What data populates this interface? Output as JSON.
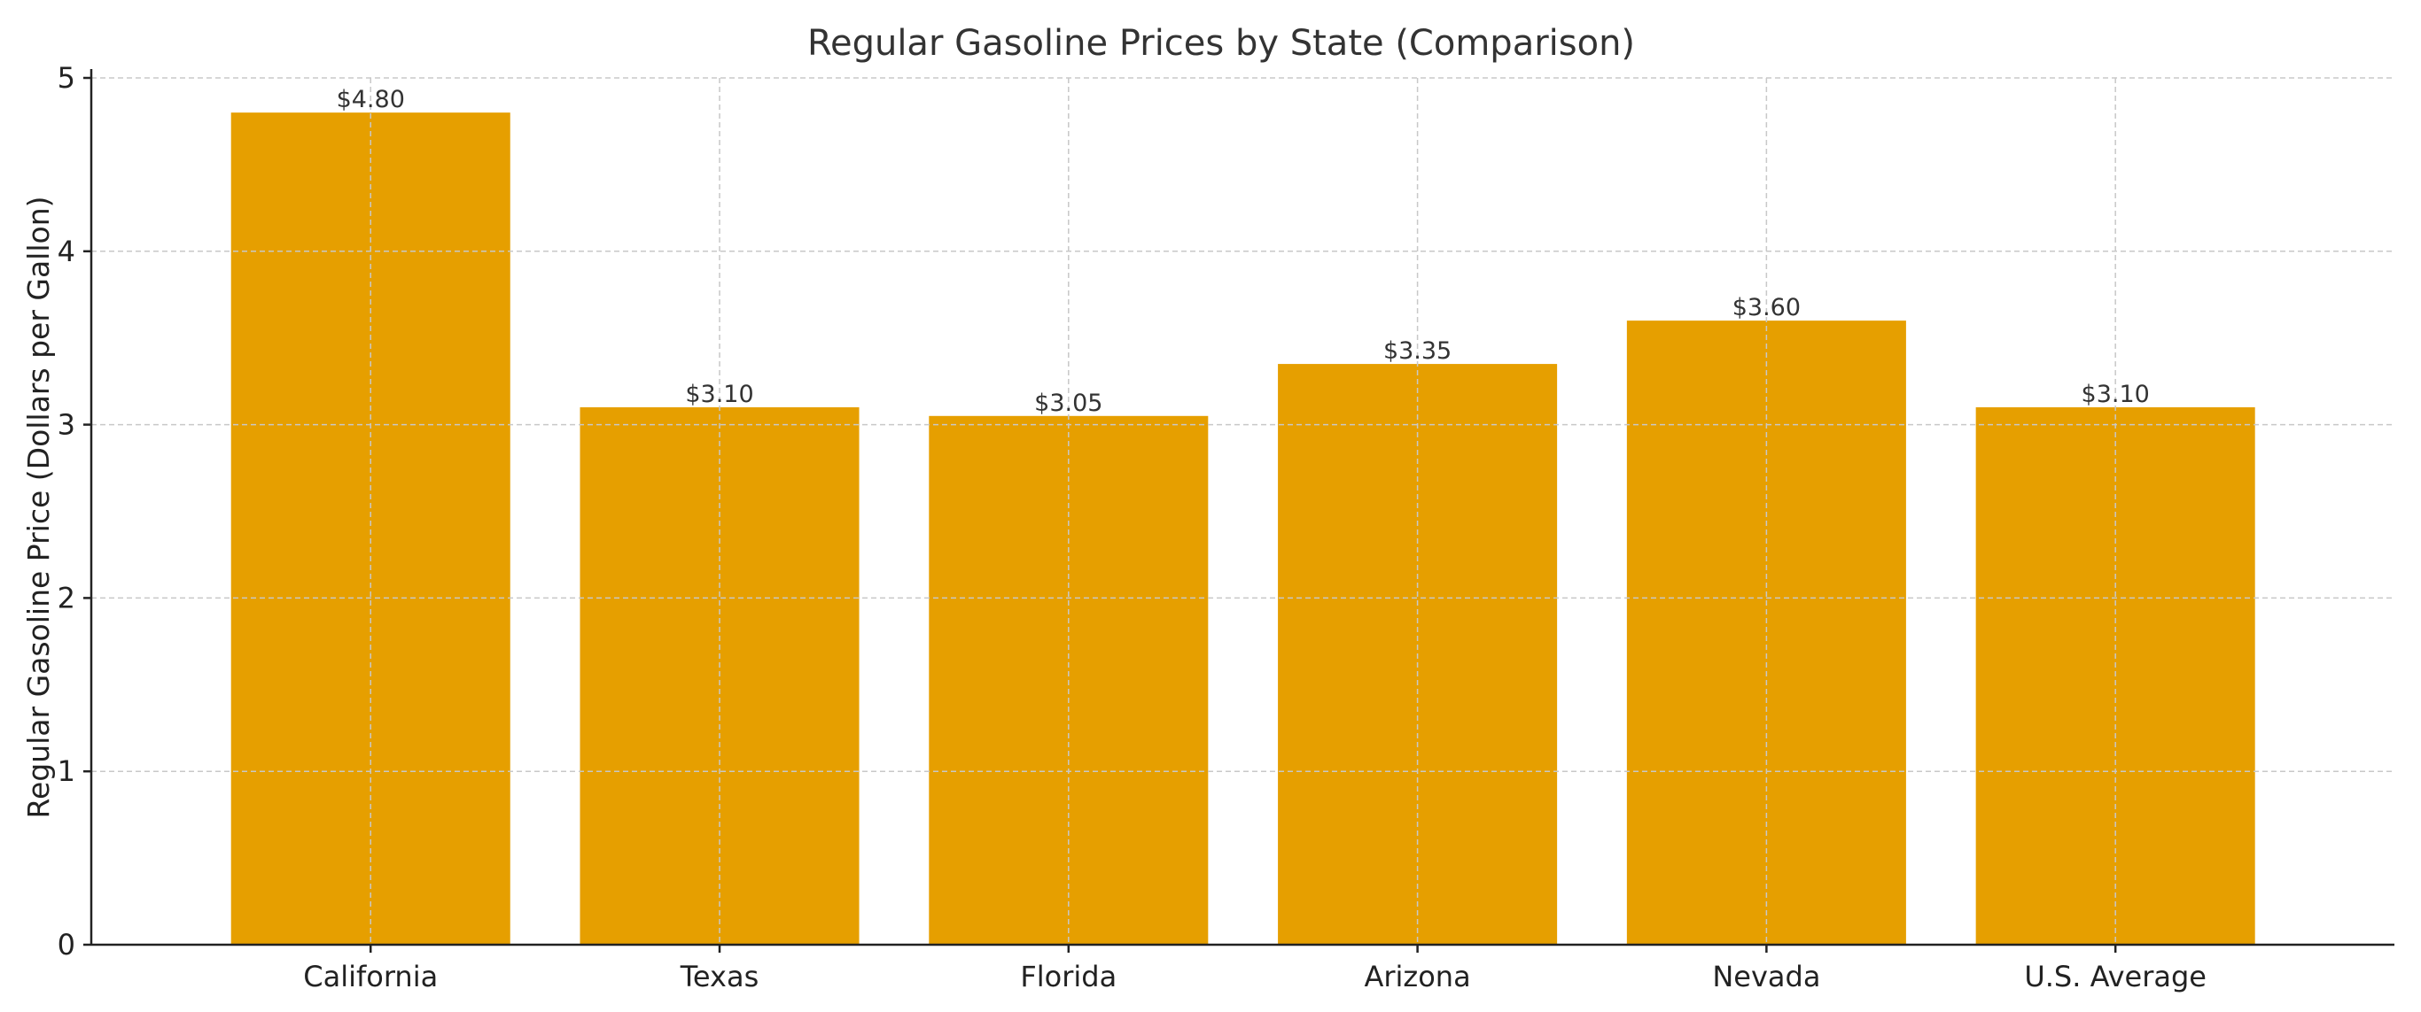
{
  "chart_data": {
    "type": "bar",
    "title": "Regular Gasoline Prices by State (Comparison)",
    "xlabel": "",
    "ylabel": "Regular Gasoline Price (Dollars per Gallon)",
    "categories": [
      "California",
      "Texas",
      "Florida",
      "Arizona",
      "Nevada",
      "U.S. Average"
    ],
    "values": [
      4.8,
      3.1,
      3.05,
      3.35,
      3.6,
      3.1
    ],
    "data_labels": [
      "$4.80",
      "$3.10",
      "$3.05",
      "$3.35",
      "$3.60",
      "$3.10"
    ],
    "yticks": [
      0,
      1,
      2,
      3,
      4,
      5
    ],
    "ylim": [
      0,
      5
    ],
    "grid": true,
    "bar_color": "#E69F00"
  }
}
